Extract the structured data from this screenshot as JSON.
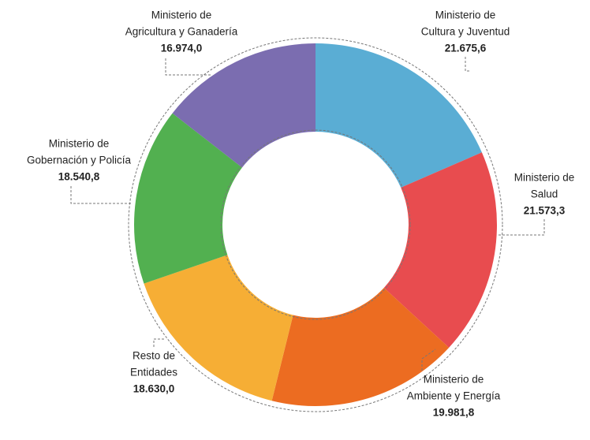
{
  "chart_data": {
    "type": "donut",
    "categories": [
      [
        "Ministerio de",
        "Cultura y Juventud"
      ],
      [
        "Ministerio de",
        "Salud"
      ],
      [
        "Ministerio de",
        "Ambiente y Energía"
      ],
      [
        "Resto de",
        "Entidades"
      ],
      [
        "Ministerio de",
        "Gobernación y Policía"
      ],
      [
        "Ministerio de",
        "Agricultura y Ganadería"
      ]
    ],
    "values": [
      21675.6,
      21573.3,
      19981.8,
      18630.0,
      18540.8,
      16974.0
    ],
    "value_labels": [
      "21.675,6",
      "21.573,3",
      "19.981,8",
      "18.630,0",
      "18.540,8",
      "16.974,0"
    ],
    "colors": [
      "#5aadd4",
      "#e84c4f",
      "#ec6c21",
      "#f6ae35",
      "#52b050",
      "#7b6db0"
    ]
  }
}
